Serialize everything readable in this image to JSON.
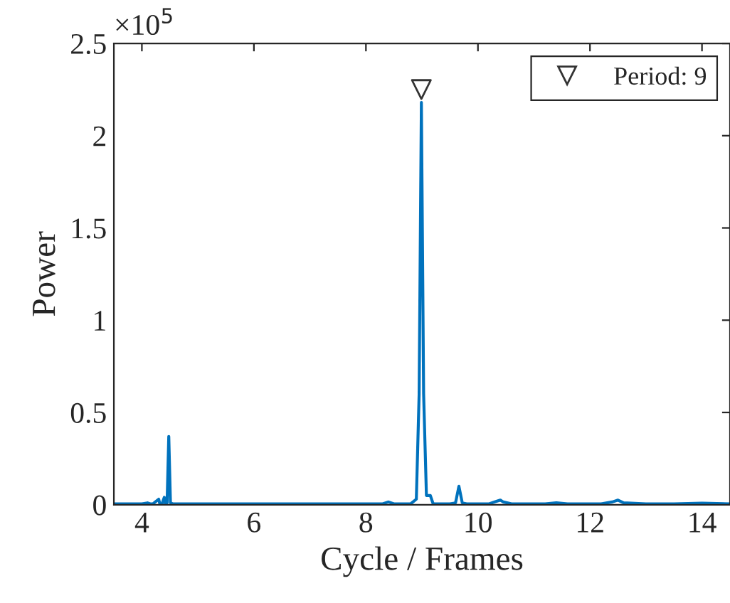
{
  "chart_data": {
    "type": "line",
    "xlabel": "Cycle / Frames",
    "ylabel": "Power",
    "annotations": [
      "×10$^{5}$"
    ],
    "xlim": [
      3.5,
      14.5
    ],
    "xticks": [
      4,
      6,
      8,
      10,
      12,
      14
    ],
    "ylim": [
      0,
      2.5
    ],
    "yticks": [
      0,
      0.5,
      1,
      1.5,
      2,
      2.5
    ],
    "grid": false,
    "legend": "top right",
    "series": [
      {
        "color": "#0072bd",
        "x": [
          3.5,
          4.0,
          4.1,
          4.15,
          4.2,
          4.3,
          4.32,
          4.36,
          4.4,
          4.42,
          4.45,
          4.48,
          4.51,
          4.55,
          4.7,
          5.5,
          7.0,
          8.0,
          8.3,
          8.4,
          8.5,
          8.8,
          8.9,
          8.95,
          8.99,
          9.03,
          9.08,
          9.15,
          9.2,
          9.5,
          9.6,
          9.66,
          9.72,
          9.8,
          10.2,
          10.35,
          10.4,
          10.45,
          10.6,
          11.2,
          11.4,
          11.6,
          12.2,
          12.4,
          12.5,
          12.6,
          13.0,
          13.5,
          14.0,
          14.5
        ],
        "values": [
          0.005,
          0.005,
          0.01,
          0.005,
          0.005,
          0.03,
          0.005,
          0.005,
          0.04,
          0.005,
          0.01,
          0.37,
          0.01,
          0.005,
          0.005,
          0.005,
          0.005,
          0.005,
          0.005,
          0.015,
          0.005,
          0.005,
          0.03,
          0.6,
          2.18,
          0.6,
          0.05,
          0.05,
          0.005,
          0.005,
          0.01,
          0.1,
          0.01,
          0.005,
          0.005,
          0.02,
          0.025,
          0.015,
          0.005,
          0.005,
          0.01,
          0.005,
          0.005,
          0.015,
          0.025,
          0.01,
          0.005,
          0.005,
          0.008,
          0.005
        ]
      },
      {
        "type": "scatter",
        "name": "Period: 9",
        "color": "#333333",
        "marker": "triangle",
        "x": [
          8.99
        ],
        "values": [
          2.25
        ]
      }
    ]
  }
}
